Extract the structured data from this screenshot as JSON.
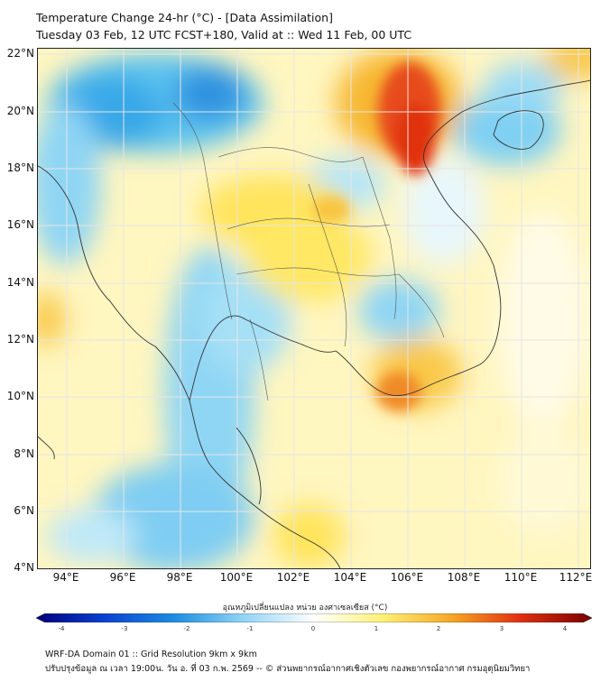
{
  "title_line1": "Temperature Change 24-hr (°C) - [Data Assimilation]",
  "title_line2": "Tuesday 03 Feb, 12 UTC FCST+180, Valid at :: Wed 11 Feb, 00 UTC",
  "map": {
    "lat_labels": [
      "22°N",
      "20°N",
      "18°N",
      "16°N",
      "14°N",
      "12°N",
      "10°N",
      "8°N",
      "6°N",
      "4°N"
    ],
    "lon_labels": [
      "94°E",
      "96°E",
      "98°E",
      "100°E",
      "102°E",
      "104°E",
      "106°E",
      "108°E",
      "110°E",
      "112°E"
    ],
    "lat_range": [
      4,
      22
    ],
    "lon_range": [
      93,
      112.5
    ]
  },
  "colorbar": {
    "label": "อุณหภูมิเปลี่ยนแปลง หน่วย องศาเซลเซียส (°C)",
    "ticks": [
      "-4",
      "-3",
      "-2",
      "-1",
      "0",
      "1",
      "2",
      "3",
      "4"
    ],
    "colors": {
      "cold_max": "#00007a",
      "cold_mid": "#1d8fe0",
      "cool": "#8fd3f5",
      "neutral": "#ffffff",
      "warm": "#fff27a",
      "warm_mid": "#f5a623",
      "hot": "#e03010",
      "hot_max": "#7a0000"
    }
  },
  "footer": {
    "line1": "WRF-DA Domain 01 :: Grid Resolution 9km x 9km",
    "line2": "ปรับปรุงข้อมูล ณ เวลา 19:00น. วัน อ. ที่ 03 ก.พ. 2569 -- © ส่วนพยากรณ์อากาศเชิงตัวเลข กองพยากรณ์อากาศ กรมอุตุนิยมวิทยา"
  }
}
